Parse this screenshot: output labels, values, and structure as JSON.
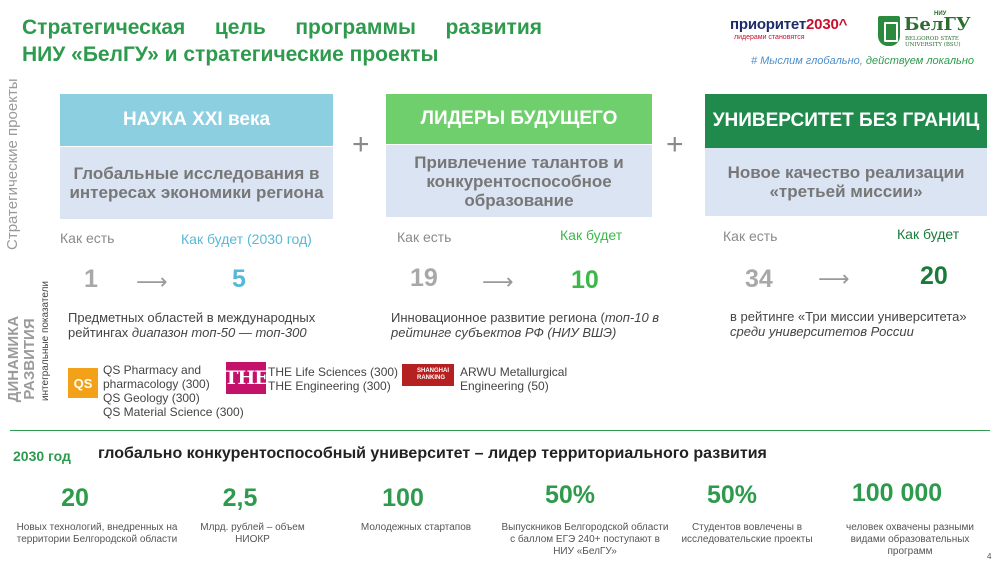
{
  "title": {
    "line1": "Стратегическая цель программы развития",
    "line2": "НИУ «БелГУ» и стратегические проекты"
  },
  "logos": {
    "prioritet_main": "приоритет",
    "prioritet_year": "2030",
    "prioritet_mark": "^",
    "prioritet_sub": "лидерами становятся",
    "belgu_name": "БелГУ",
    "belgu_niu": "НИУ",
    "belgu_sub": "BELGOROD STATE UNIVERSITY (BSU)"
  },
  "slogan": {
    "part1": "# Мыслим глобально, ",
    "part2": "действуем локально"
  },
  "side_labels": {
    "strategic": "Стратегические проекты",
    "dynamics_line1": "ДИНАМИКА",
    "dynamics_line2": "РАЗВИТИЯ",
    "integral": "интегральные показатели"
  },
  "plus": "+",
  "arrow": "⟶",
  "projects": [
    {
      "head": "НАУКА XXI века",
      "body": "Глобальные исследования в интересах экономики региона",
      "now_label": "Как есть",
      "future_label": "Как будет (2030 год)",
      "now": "1",
      "future": "5",
      "desc": "Предметных областей в международных рейтингах ",
      "desc_italic": "диапазон топ-50 — топ-300"
    },
    {
      "head": "ЛИДЕРЫ БУДУЩЕГО",
      "body": "Привлечение талантов и конкурентоспособное образование",
      "now_label": "Как есть",
      "future_label": "Как будет",
      "now": "19",
      "future": "10",
      "desc": "Инновационное развитие региона (",
      "desc_italic": "топ-10 в рейтинге субъектов РФ (НИУ ВШЭ)"
    },
    {
      "head": "УНИВЕРСИТЕТ БЕЗ ГРАНИЦ",
      "body": "Новое качество реализации «третьей миссии»",
      "now_label": "Как есть",
      "future_label": "Как будет",
      "now": "34",
      "future": "20",
      "desc": "в рейтинге «Три миссии университета» ",
      "desc_italic": "среди университетов России"
    }
  ],
  "rankings": {
    "qs_badge": "QS",
    "qs_items": [
      "QS Pharmacy and",
      "pharmacology (300)",
      "QS Geology (300)",
      "QS Material Science (300)"
    ],
    "the_badge": "THE",
    "the_items": [
      "THE Life Sciences (300)",
      "THE Engineering (300)"
    ],
    "sr_badge_line1": "SHANGHAI",
    "sr_badge_line2": "RANKING",
    "arwu_items": [
      "ARWU Metallurgical",
      "Engineering (50)"
    ]
  },
  "goal": {
    "year": "2030 год",
    "text": "глобально конкурентоспособный университет – лидер территориального развития"
  },
  "stats": [
    {
      "value": "20",
      "text": "Новых технологий, внедренных на территории Белгородской области"
    },
    {
      "value": "2,5",
      "text": "Млрд. рублей – объем НИОКР"
    },
    {
      "value": "100",
      "text": "Молодежных стартапов"
    },
    {
      "value": "50%",
      "text": "Выпускников Белгородской области с баллом ЕГЭ 240+ поступают в НИУ «БелГУ»"
    },
    {
      "value": "50%",
      "text": "Студентов вовлечены в исследовательские проекты"
    },
    {
      "value": "100 000",
      "text": "человек охвачены разными видами образовательных программ"
    }
  ],
  "page_number": "4"
}
